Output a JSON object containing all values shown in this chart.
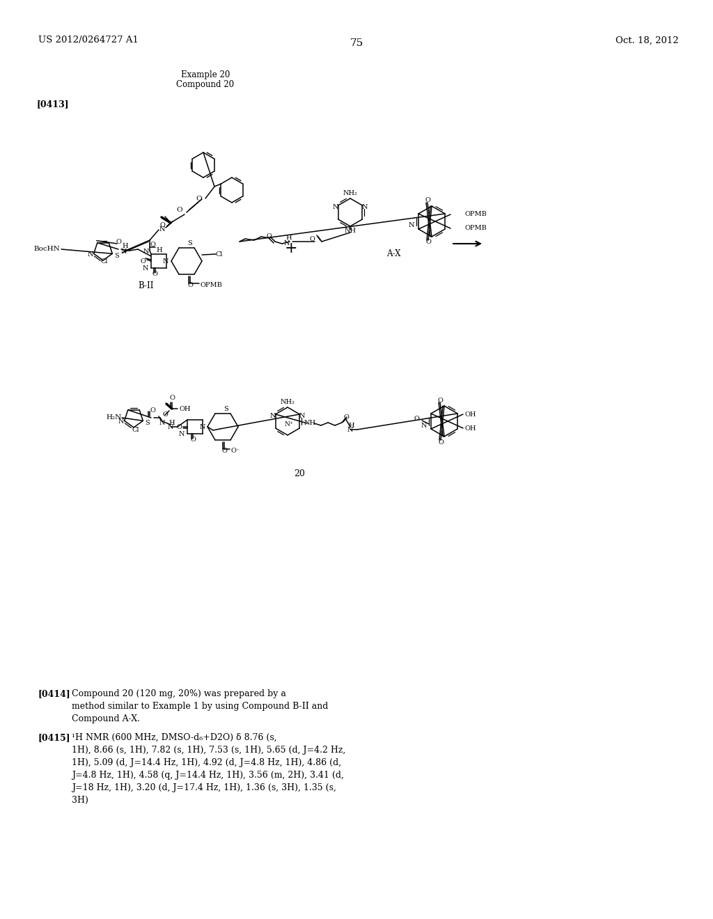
{
  "bg_color": "#ffffff",
  "header_left": "US 2012/0264727 A1",
  "header_right": "Oct. 18, 2012",
  "page_number": "75",
  "example_label": "Example 20",
  "compound_label": "Compound 20",
  "paragraph_label": "[0413]",
  "para0414_bold": "[0414]",
  "para0414_text": "Compound 20 (120 mg, 20%) was prepared by a\nmethod similar to Example 1 by using Compound B-II and\nCompound A-X.",
  "para0415_bold": "[0415]",
  "para0415_text": "¹H NMR (600 MHz, DMSO-d₆+D2O) δ 8.76 (s,\n1H), 8.66 (s, 1H), 7.82 (s, 1H), 7.53 (s, 1H), 5.65 (d, J=4.2 Hz,\n1H), 5.09 (d, J=14.4 Hz, 1H), 4.92 (d, J=4.8 Hz, 1H), 4.86 (d,\nJ=4.8 Hz, 1H), 4.58 (q, J=14.4 Hz, 1H), 3.56 (m, 2H), 3.41 (d,\nJ=18 Hz, 1H), 3.20 (d, J=17.4 Hz, 1H), 1.36 (s, 3H), 1.35 (s,\n3H)"
}
